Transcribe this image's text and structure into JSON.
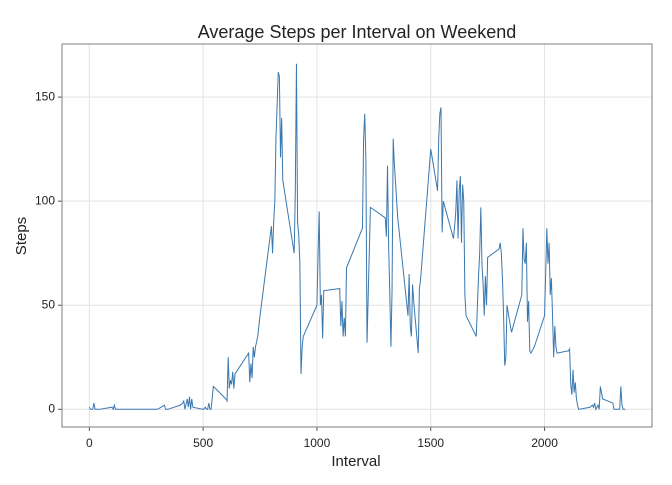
{
  "chart_data": {
    "type": "line",
    "title": "Average Steps per Interval on Weekend",
    "x_label": "Interval",
    "y_label": "Steps",
    "color": "#3a78b0",
    "grid": true,
    "xlim": [
      -120,
      2472
    ],
    "ylim": [
      -8.5,
      175.5
    ],
    "xticks": [
      0,
      500,
      1000,
      1500,
      2000
    ],
    "yticks": [
      0,
      50,
      100,
      150
    ],
    "x": [
      0,
      5,
      10,
      15,
      20,
      25,
      30,
      45,
      100,
      105,
      110,
      115,
      120,
      200,
      300,
      330,
      335,
      345,
      400,
      410,
      415,
      420,
      430,
      435,
      440,
      445,
      450,
      455,
      500,
      510,
      515,
      520,
      525,
      530,
      535,
      545,
      600,
      605,
      610,
      615,
      620,
      625,
      630,
      635,
      640,
      700,
      705,
      710,
      715,
      720,
      725,
      730,
      740,
      750,
      800,
      805,
      810,
      815,
      820,
      830,
      835,
      840,
      845,
      850,
      900,
      905,
      910,
      915,
      920,
      925,
      930,
      935,
      940,
      1000,
      1005,
      1010,
      1015,
      1020,
      1025,
      1030,
      1100,
      1105,
      1110,
      1115,
      1120,
      1125,
      1130,
      1200,
      1205,
      1210,
      1215,
      1220,
      1235,
      1300,
      1305,
      1310,
      1315,
      1320,
      1325,
      1330,
      1335,
      1340,
      1355,
      1400,
      1405,
      1410,
      1415,
      1420,
      1425,
      1445,
      1450,
      1455,
      1500,
      1530,
      1535,
      1540,
      1545,
      1550,
      1555,
      1600,
      1605,
      1610,
      1615,
      1620,
      1625,
      1630,
      1635,
      1640,
      1645,
      1650,
      1655,
      1700,
      1705,
      1710,
      1715,
      1720,
      1725,
      1730,
      1735,
      1740,
      1745,
      1750,
      1800,
      1805,
      1810,
      1815,
      1820,
      1825,
      1830,
      1835,
      1850,
      1855,
      1900,
      1905,
      1910,
      1915,
      1920,
      1925,
      1930,
      1935,
      1940,
      1955,
      2000,
      2010,
      2015,
      2020,
      2025,
      2030,
      2035,
      2040,
      2045,
      2050,
      2055,
      2100,
      2105,
      2110,
      2115,
      2120,
      2125,
      2130,
      2135,
      2140,
      2145,
      2150,
      2200,
      2210,
      2215,
      2220,
      2225,
      2230,
      2235,
      2240,
      2245,
      2250,
      2255,
      2300,
      2305,
      2330,
      2335,
      2340,
      2345,
      2355
    ],
    "values": [
      1,
      0,
      0,
      0,
      3,
      0,
      0,
      0,
      1,
      0,
      2,
      0,
      0,
      0,
      0,
      2,
      0,
      0,
      2,
      3,
      4,
      0,
      5,
      1,
      6,
      0,
      5,
      1,
      0,
      1,
      0,
      0,
      3,
      0,
      0,
      11,
      5,
      4,
      25,
      10,
      14,
      12,
      18,
      10,
      17,
      27,
      13,
      22,
      15,
      30,
      25,
      30,
      35,
      45,
      88,
      75,
      90,
      100,
      130,
      162,
      160,
      121,
      140,
      110,
      75,
      105,
      166,
      90,
      84,
      70,
      17,
      30,
      35,
      50,
      75,
      95,
      50,
      55,
      34,
      57,
      58,
      40,
      52,
      35,
      44,
      35,
      68,
      87,
      130,
      142,
      120,
      32,
      97,
      92,
      83,
      117,
      78,
      56,
      30,
      57,
      130,
      118,
      92,
      45,
      65,
      40,
      35,
      60,
      52,
      27,
      58,
      62,
      125,
      105,
      130,
      142,
      145,
      85,
      100,
      82,
      88,
      95,
      110,
      82,
      105,
      112,
      80,
      108,
      100,
      55,
      45,
      35,
      50,
      64,
      75,
      97,
      70,
      60,
      45,
      64,
      50,
      73,
      77,
      80,
      75,
      63,
      45,
      21,
      25,
      50,
      40,
      37,
      55,
      87,
      72,
      70,
      80,
      42,
      52,
      28,
      27,
      30,
      45,
      87,
      70,
      80,
      55,
      63,
      45,
      25,
      40,
      30,
      27,
      28,
      28,
      29,
      12,
      7,
      19,
      8,
      13,
      5,
      2,
      0,
      1,
      2,
      1,
      3,
      0,
      1,
      2,
      0,
      11,
      8,
      5,
      3,
      0,
      0,
      11,
      2,
      0,
      0
    ]
  }
}
